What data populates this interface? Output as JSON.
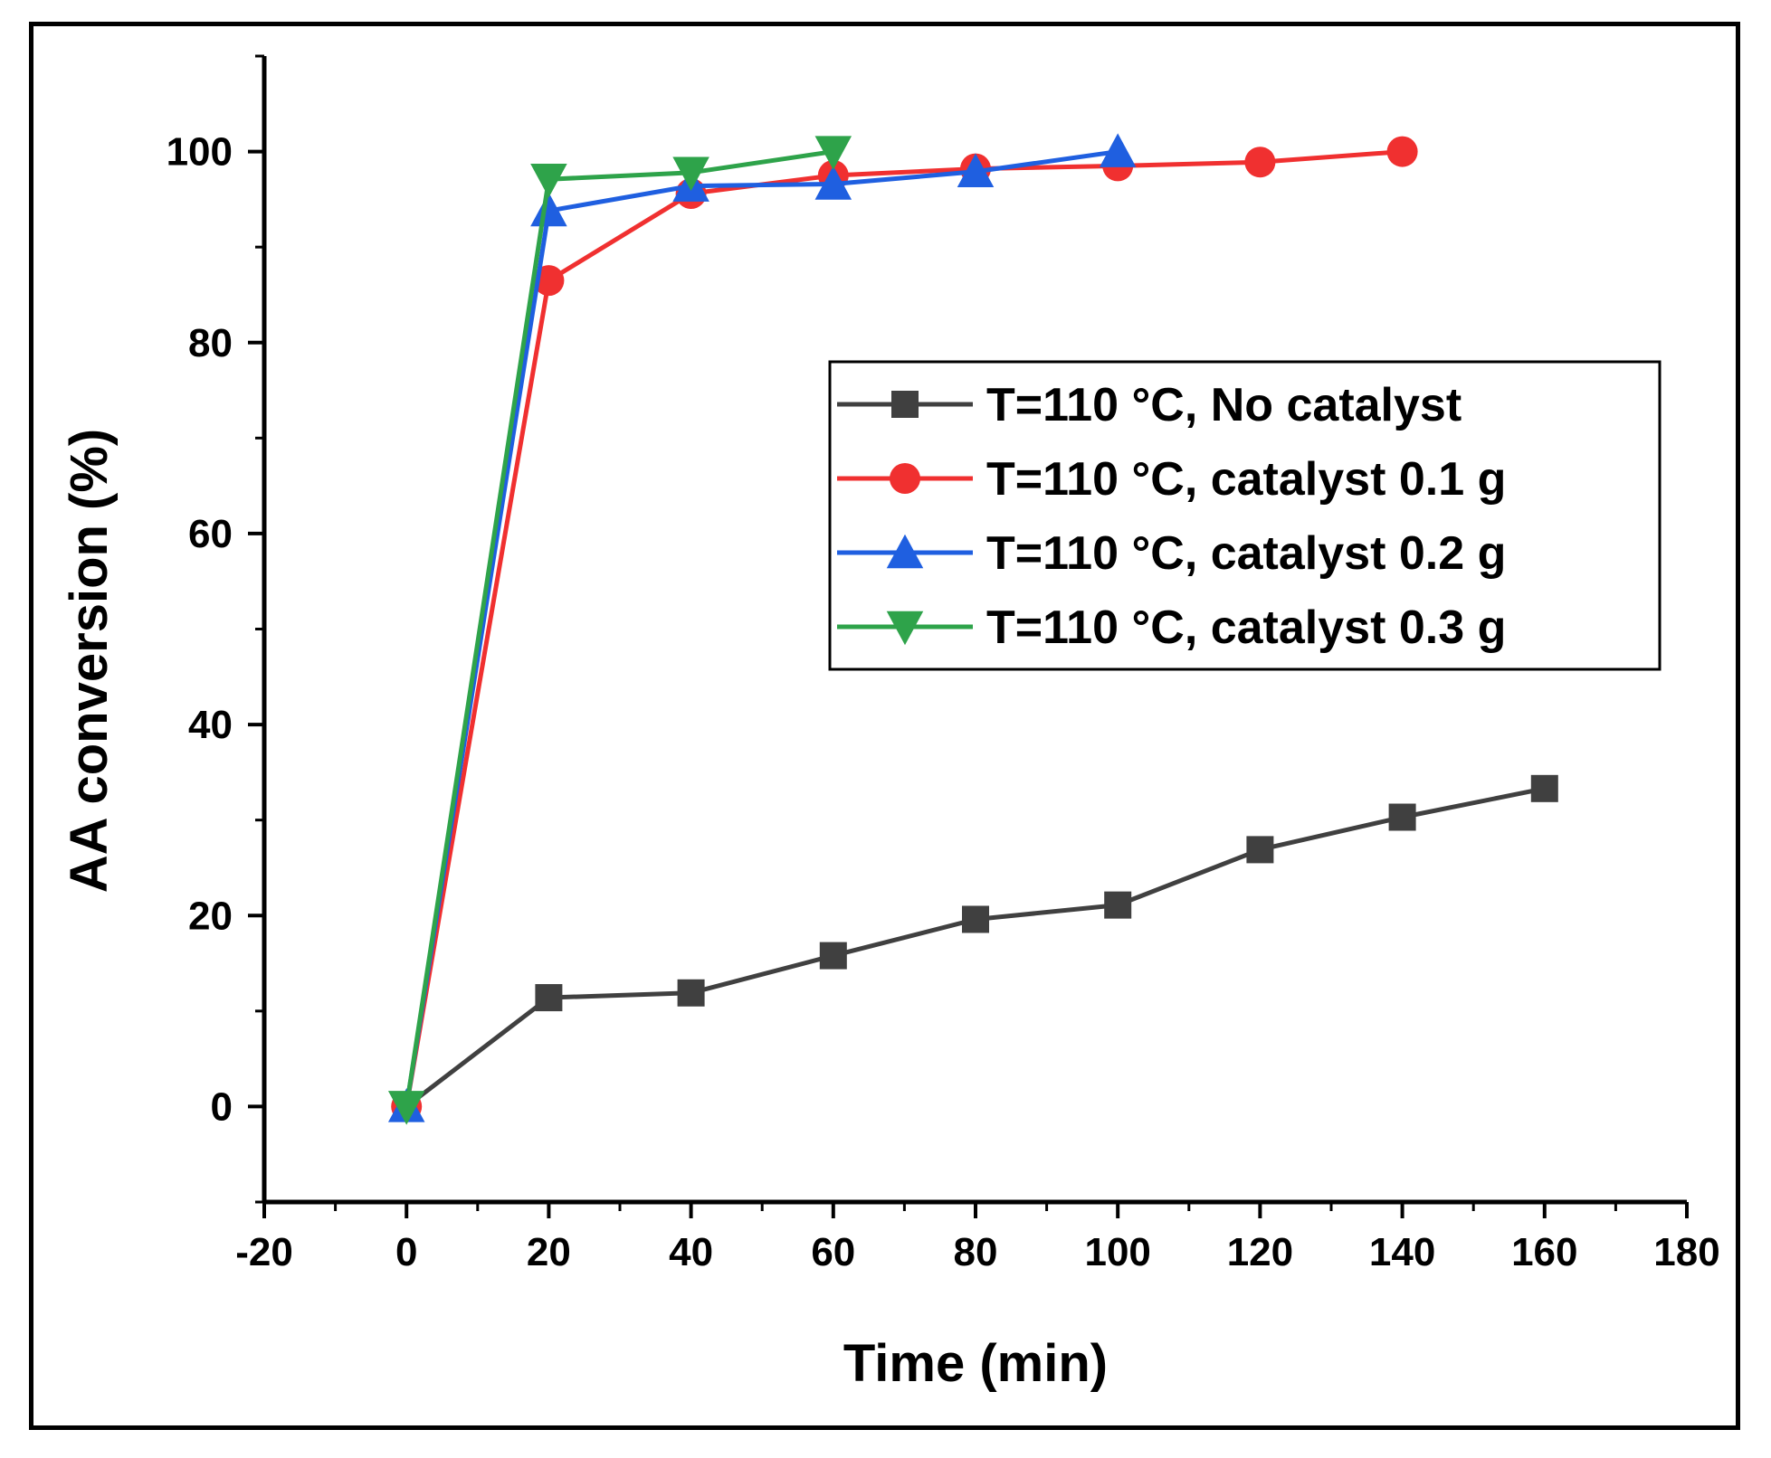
{
  "chart_data": {
    "type": "line",
    "title": "",
    "xlabel": "Time (min)",
    "ylabel": "AA conversion (%)",
    "xlim": [
      -20,
      180
    ],
    "ylim": [
      -10,
      110
    ],
    "xticks": [
      -20,
      0,
      20,
      40,
      60,
      80,
      100,
      120,
      140,
      160,
      180
    ],
    "yticks": [
      0,
      20,
      40,
      60,
      80,
      100
    ],
    "grid": false,
    "legend_position": "center-right",
    "series": [
      {
        "name": "T=110 °C, No catalyst",
        "color": "#404040",
        "marker": "square",
        "x": [
          0,
          20,
          40,
          60,
          80,
          100,
          120,
          140,
          160
        ],
        "y": [
          0,
          11.4,
          11.9,
          15.8,
          19.6,
          21.1,
          26.9,
          30.3,
          33.3
        ]
      },
      {
        "name": "T=110 °C, catalyst 0.1 g",
        "color": "#f03030",
        "marker": "circle",
        "x": [
          0,
          20,
          40,
          60,
          80,
          100,
          120,
          140
        ],
        "y": [
          0,
          86.5,
          95.6,
          97.5,
          98.2,
          98.5,
          98.9,
          100
        ]
      },
      {
        "name": "T=110 °C, catalyst 0.2 g",
        "color": "#1f5fe0",
        "marker": "triangle-up",
        "x": [
          0,
          20,
          40,
          60,
          80,
          100
        ],
        "y": [
          0,
          93.8,
          96.4,
          96.6,
          97.9,
          100
        ]
      },
      {
        "name": "T=110 °C, catalyst 0.3 g",
        "color": "#2ea34a",
        "marker": "triangle-down",
        "x": [
          0,
          20,
          40,
          60
        ],
        "y": [
          0,
          97.1,
          97.8,
          100
        ]
      }
    ]
  }
}
